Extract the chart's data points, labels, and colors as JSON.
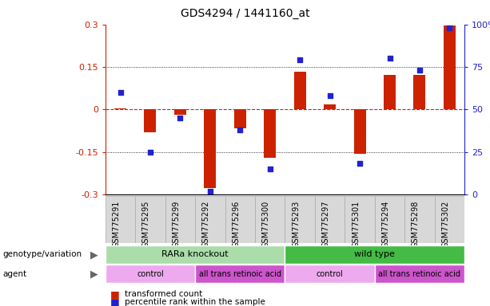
{
  "title": "GDS4294 / 1441160_at",
  "samples": [
    "GSM775291",
    "GSM775295",
    "GSM775299",
    "GSM775292",
    "GSM775296",
    "GSM775300",
    "GSM775293",
    "GSM775297",
    "GSM775301",
    "GSM775294",
    "GSM775298",
    "GSM775302"
  ],
  "transformed_count": [
    0.003,
    -0.082,
    -0.018,
    -0.278,
    -0.068,
    -0.17,
    0.132,
    0.018,
    -0.158,
    0.122,
    0.122,
    0.295
  ],
  "percentile_rank": [
    60,
    25,
    45,
    2,
    38,
    15,
    79,
    58,
    18,
    80,
    73,
    98
  ],
  "ylim_left": [
    -0.3,
    0.3
  ],
  "ylim_right": [
    0,
    100
  ],
  "yticks_left": [
    -0.3,
    -0.15,
    0.0,
    0.15,
    0.3
  ],
  "ytick_labels_left": [
    "-0.3",
    "-0.15",
    "0",
    "0.15",
    "0.3"
  ],
  "yticks_right": [
    0,
    25,
    50,
    75,
    100
  ],
  "ytick_labels_right": [
    "0",
    "25",
    "50",
    "75",
    "100%"
  ],
  "bar_color": "#cc2200",
  "dot_color": "#2222cc",
  "hline_color": "#cc2200",
  "genotype_groups": [
    {
      "label": "RARa knockout",
      "start": 0,
      "end": 6,
      "color": "#aaddaa"
    },
    {
      "label": "wild type",
      "start": 6,
      "end": 12,
      "color": "#44bb44"
    }
  ],
  "agent_groups": [
    {
      "label": "control",
      "start": 0,
      "end": 3,
      "color": "#eeaaee"
    },
    {
      "label": "all trans retinoic acid",
      "start": 3,
      "end": 6,
      "color": "#cc55cc"
    },
    {
      "label": "control",
      "start": 6,
      "end": 9,
      "color": "#eeaaee"
    },
    {
      "label": "all trans retinoic acid",
      "start": 9,
      "end": 12,
      "color": "#cc55cc"
    }
  ],
  "legend_items": [
    {
      "label": "transformed count",
      "color": "#cc2200"
    },
    {
      "label": "percentile rank within the sample",
      "color": "#2222cc"
    }
  ],
  "genotype_row_label": "genotype/variation",
  "agent_row_label": "agent",
  "sample_bg_color": "#d8d8d8",
  "sample_edge_color": "#aaaaaa"
}
